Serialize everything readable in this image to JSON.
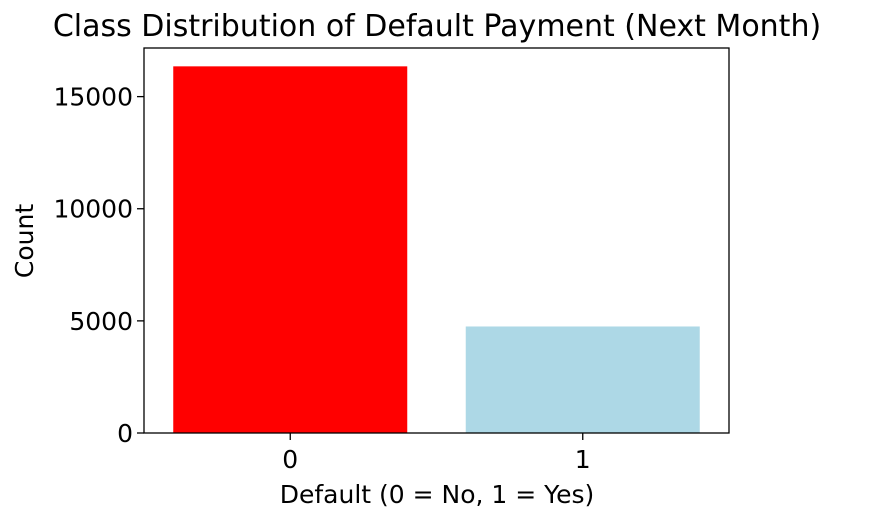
{
  "chart_data": {
    "type": "bar",
    "title": "Class Distribution of Default Payment (Next Month)",
    "xlabel": "Default (0 = No, 1 = Yes)",
    "ylabel": "Count",
    "categories": [
      "0",
      "1"
    ],
    "values": [
      16350,
      4750
    ],
    "colors": [
      "#ff0000",
      "#add8e6"
    ],
    "yticks": [
      0,
      5000,
      10000,
      15000
    ],
    "ylim": [
      0,
      17168
    ],
    "xlim": [
      -0.5,
      1.5
    ],
    "grid": false,
    "legend": "none"
  }
}
